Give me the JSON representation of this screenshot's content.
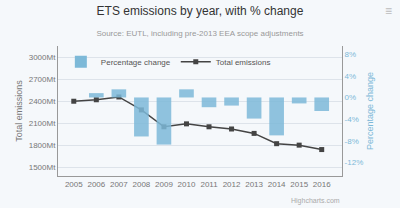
{
  "chart_data": {
    "type": "bar",
    "title": "ETS emissions by year, with % change",
    "subtitle": "Source: EUTL, including pre-2013 EEA scope adjustments",
    "x": [
      2005,
      2006,
      2007,
      2008,
      2009,
      2010,
      2011,
      2012,
      2013,
      2014,
      2015,
      2016
    ],
    "series": [
      {
        "name": "Percentage change",
        "type": "bar",
        "axis": "y2",
        "color": "#7db9d8",
        "values": [
          0.0,
          0.8,
          1.5,
          -7.2,
          -8.7,
          1.5,
          -1.8,
          -1.5,
          -3.9,
          -7.0,
          -1.1,
          -2.5
        ]
      },
      {
        "name": "Total emissions",
        "type": "line",
        "axis": "y",
        "color": "#444444",
        "marker": "square",
        "line_style": "solid",
        "values": [
          2398,
          2418,
          2456,
          2280,
          2050,
          2090,
          2050,
          2020,
          1960,
          1820,
          1800,
          1740
        ]
      }
    ],
    "y_label": "Total emissions",
    "y2_label": "Percentage change",
    "xlim": [
      2004.3,
      2016.9
    ],
    "xticks": [
      2005,
      2006,
      2007,
      2008,
      2009,
      2010,
      2011,
      2012,
      2013,
      2014,
      2015,
      2016
    ],
    "ylim": [
      1380,
      3150
    ],
    "yticks": [
      {
        "value": 1500,
        "label": "1500Mt"
      },
      {
        "value": 1800,
        "label": "1800Mt"
      },
      {
        "value": 2100,
        "label": "2100Mt"
      },
      {
        "value": 2400,
        "label": "2400Mt"
      },
      {
        "value": 2700,
        "label": "2700Mt"
      },
      {
        "value": 3000,
        "label": "3000Mt"
      }
    ],
    "y2lim": [
      -14.5,
      9.5
    ],
    "y2ticks": [
      {
        "value": -12,
        "label": "-12%"
      },
      {
        "value": -8,
        "label": "-8%"
      },
      {
        "value": -4,
        "label": "-4%"
      },
      {
        "value": 0,
        "label": "0%"
      },
      {
        "value": 4,
        "label": "4%"
      },
      {
        "value": 8,
        "label": "8%"
      }
    ],
    "grid": true,
    "legend": "upper left",
    "annotations": [
      "Highcharts.com",
      "≡"
    ]
  }
}
